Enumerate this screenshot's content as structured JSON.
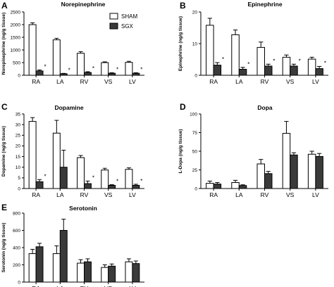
{
  "legend": [
    {
      "label": "SHAM",
      "color": "#ffffff"
    },
    {
      "label": "SGX",
      "color": "#3a3a3a"
    }
  ],
  "chart_data": [
    {
      "type": "bar",
      "letter": "A",
      "title": "Norepinephrine",
      "ylabel": "Norepinephrine (ng/g tissue)",
      "categories": [
        "RA",
        "LA",
        "RV",
        "VS",
        "LV"
      ],
      "ylim": [
        0,
        2500
      ],
      "yticks": [
        0,
        500,
        1000,
        1500,
        2000,
        2500
      ],
      "series": [
        {
          "name": "SHAM",
          "values": [
            2000,
            1400,
            870,
            500,
            510
          ],
          "errors": [
            70,
            60,
            60,
            30,
            40
          ]
        },
        {
          "name": "SGX",
          "values": [
            170,
            60,
            110,
            80,
            80
          ],
          "errors": [
            40,
            15,
            30,
            20,
            20
          ]
        }
      ],
      "significance": [
        "*",
        "*",
        "*",
        "*",
        "*"
      ]
    },
    {
      "type": "bar",
      "letter": "B",
      "title": "Epinephrine",
      "ylabel": "Epinephrine (ng/g tissue)",
      "categories": [
        "RA",
        "LA",
        "RV",
        "VS",
        "LV"
      ],
      "ylim": [
        0,
        20
      ],
      "yticks": [
        0,
        10,
        20
      ],
      "series": [
        {
          "name": "SHAM",
          "values": [
            15.8,
            12.8,
            8.8,
            5.7,
            5.1
          ],
          "errors": [
            2.2,
            1.5,
            1.7,
            0.7,
            0.6
          ]
        },
        {
          "name": "SGX",
          "values": [
            3.2,
            1.9,
            2.9,
            2.9,
            2.1
          ],
          "errors": [
            0.8,
            0.6,
            0.6,
            0.6,
            0.7
          ]
        }
      ],
      "significance": [
        "*",
        "*",
        "*",
        "*",
        "*"
      ]
    },
    {
      "type": "bar",
      "letter": "C",
      "title": "Dopamine",
      "ylabel": "Dopamine (ng/g tissue)",
      "categories": [
        "RA",
        "LA",
        "RV",
        "VS",
        "LV"
      ],
      "ylim": [
        0,
        35
      ],
      "yticks": [
        0,
        5,
        10,
        15,
        20,
        25,
        30,
        35
      ],
      "series": [
        {
          "name": "SHAM",
          "values": [
            31.5,
            26,
            14.5,
            8.7,
            9
          ],
          "errors": [
            1.8,
            6,
            1.0,
            0.8,
            0.7
          ]
        },
        {
          "name": "SGX",
          "values": [
            3.2,
            10,
            2.3,
            1.5,
            1.5
          ],
          "errors": [
            1.0,
            8,
            1.2,
            0.3,
            0.5
          ]
        }
      ],
      "significance": [
        "*",
        "",
        "*",
        "*",
        "*"
      ]
    },
    {
      "type": "bar",
      "letter": "D",
      "title": "Dopa",
      "ylabel": "L-Dopa (ng/g tissue)",
      "categories": [
        "RA",
        "LA",
        "RV",
        "VS",
        "LV"
      ],
      "ylim": [
        0,
        100
      ],
      "yticks": [
        0,
        25,
        50,
        75,
        100
      ],
      "series": [
        {
          "name": "SHAM",
          "values": [
            7,
            8,
            33,
            74,
            46
          ],
          "errors": [
            3,
            3,
            6,
            16,
            4
          ]
        },
        {
          "name": "SGX",
          "values": [
            6,
            4,
            20,
            45,
            43
          ],
          "errors": [
            2,
            1,
            3,
            3,
            4
          ]
        }
      ],
      "significance": [
        "",
        "",
        "",
        "",
        ""
      ]
    },
    {
      "type": "bar",
      "letter": "E",
      "title": "Serotonin",
      "ylabel": "Serotonin (ng/g tissue)",
      "categories": [
        "RA",
        "LA",
        "RV",
        "VS",
        "LV"
      ],
      "ylim": [
        0,
        800
      ],
      "yticks": [
        0,
        200,
        400,
        600,
        800
      ],
      "series": [
        {
          "name": "SHAM",
          "values": [
            330,
            330,
            220,
            170,
            235
          ],
          "errors": [
            50,
            90,
            40,
            30,
            35
          ]
        },
        {
          "name": "SGX",
          "values": [
            410,
            600,
            235,
            185,
            215
          ],
          "errors": [
            40,
            130,
            35,
            25,
            30
          ]
        }
      ],
      "significance": [
        "",
        "",
        "",
        "",
        ""
      ]
    }
  ]
}
